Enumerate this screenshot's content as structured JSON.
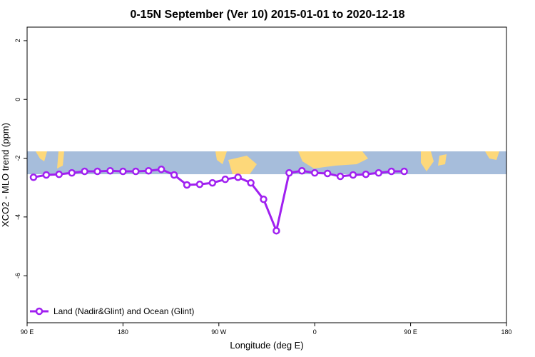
{
  "chart_data": {
    "type": "line",
    "title": "0-15N September (Ver 10)   2015-01-01 to 2020-12-18",
    "x_label": "Longitude (deg E)",
    "y_label": "XCO2 - MLO trend (ppm)",
    "x": [
      96,
      108,
      120,
      132,
      144,
      156,
      168,
      180,
      192,
      204,
      216,
      228,
      240,
      252,
      264,
      276,
      288,
      300,
      312,
      324,
      336,
      348,
      360,
      372,
      384,
      396,
      408,
      420,
      432,
      444
    ],
    "series": [
      {
        "name": "Land (Nadir&Glint) and Ocean (Glint)",
        "color": "#a020f0",
        "values": [
          -2.65,
          -2.57,
          -2.55,
          -2.5,
          -2.45,
          -2.45,
          -2.43,
          -2.45,
          -2.45,
          -2.43,
          -2.38,
          -2.57,
          -2.91,
          -2.89,
          -2.84,
          -2.72,
          -2.65,
          -2.84,
          -3.4,
          -4.47,
          -2.5,
          -2.43,
          -2.5,
          -2.52,
          -2.62,
          -2.57,
          -2.55,
          -2.5,
          -2.45,
          -2.45
        ]
      }
    ],
    "xlim": [
      90,
      540
    ],
    "xticks": [
      {
        "value": 90,
        "label": "90 E"
      },
      180,
      {
        "value": 270,
        "label": "90 W"
      },
      {
        "value": 360,
        "label": "0"
      },
      {
        "value": 450,
        "label": "90 E"
      },
      {
        "value": 540,
        "label": "180"
      }
    ],
    "ylim": [
      -7.6,
      2.46
    ],
    "yticks": [
      -6,
      -4,
      -2,
      0,
      2
    ],
    "legend": "bottom-left"
  }
}
